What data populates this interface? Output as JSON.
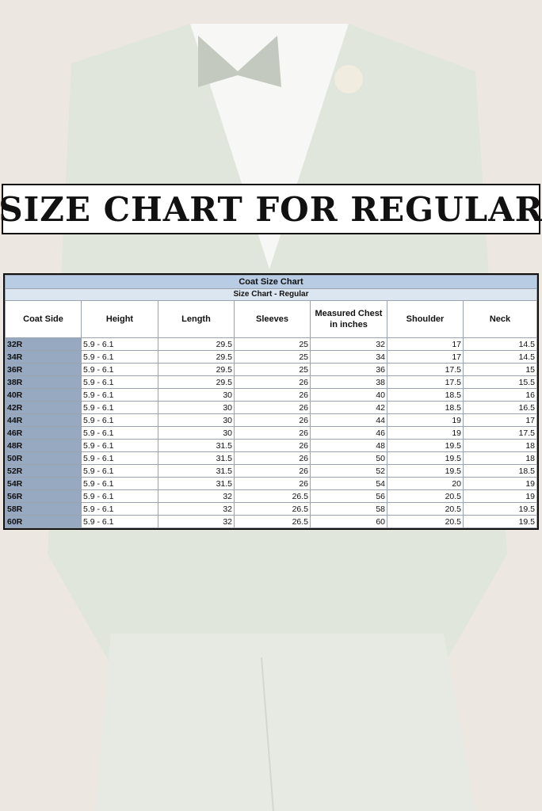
{
  "header": {
    "title": "SIZE CHART FOR REGULAR"
  },
  "table": {
    "title": "Coat Size Chart",
    "subtitle": "Size Chart - Regular",
    "columns": [
      "Coat Side",
      "Height",
      "Length",
      "Sleeves",
      "Measured Chest in inches",
      "Shoulder",
      "Neck"
    ],
    "rows": [
      [
        "32R",
        "5.9 - 6.1",
        "29.5",
        "25",
        "32",
        "17",
        "14.5"
      ],
      [
        "34R",
        "5.9 - 6.1",
        "29.5",
        "25",
        "34",
        "17",
        "14.5"
      ],
      [
        "36R",
        "5.9 - 6.1",
        "29.5",
        "25",
        "36",
        "17.5",
        "15"
      ],
      [
        "38R",
        "5.9 - 6.1",
        "29.5",
        "26",
        "38",
        "17.5",
        "15.5"
      ],
      [
        "40R",
        "5.9 - 6.1",
        "30",
        "26",
        "40",
        "18.5",
        "16"
      ],
      [
        "42R",
        "5.9 - 6.1",
        "30",
        "26",
        "42",
        "18.5",
        "16.5"
      ],
      [
        "44R",
        "5.9 - 6.1",
        "30",
        "26",
        "44",
        "19",
        "17"
      ],
      [
        "46R",
        "5.9 - 6.1",
        "30",
        "26",
        "46",
        "19",
        "17.5"
      ],
      [
        "48R",
        "5.9 - 6.1",
        "31.5",
        "26",
        "48",
        "19.5",
        "18"
      ],
      [
        "50R",
        "5.9 - 6.1",
        "31.5",
        "26",
        "50",
        "19.5",
        "18"
      ],
      [
        "52R",
        "5.9 - 6.1",
        "31.5",
        "26",
        "52",
        "19.5",
        "18.5"
      ],
      [
        "54R",
        "5.9 - 6.1",
        "31.5",
        "26",
        "54",
        "20",
        "19"
      ],
      [
        "56R",
        "5.9 - 6.1",
        "32",
        "26.5",
        "56",
        "20.5",
        "19"
      ],
      [
        "58R",
        "5.9 - 6.1",
        "32",
        "26.5",
        "58",
        "20.5",
        "19.5"
      ],
      [
        "60R",
        "5.9 - 6.1",
        "32",
        "26.5",
        "60",
        "20.5",
        "19.5"
      ]
    ]
  }
}
